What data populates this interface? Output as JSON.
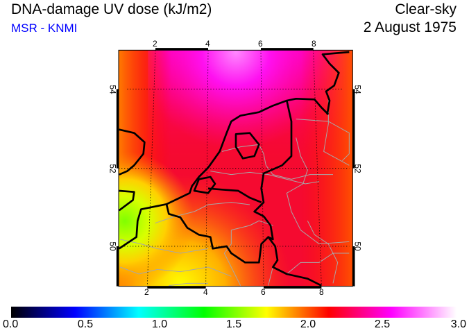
{
  "header": {
    "title": "DNA-damage UV dose (kJ/m2)",
    "source": "MSR - KNMI",
    "condition": "Clear-sky",
    "date": "2 August 1975"
  },
  "map": {
    "lon_ticks_top": [
      "2",
      "4",
      "6",
      "8"
    ],
    "lon_ticks_bottom": [
      "2",
      "4",
      "6",
      "8"
    ],
    "lat_ticks_left": [
      "54",
      "52",
      "50"
    ],
    "lat_ticks_right": [
      "54",
      "52",
      "50"
    ]
  },
  "colorbar": {
    "min": 0.0,
    "max": 3.0,
    "labels": [
      "0.0",
      "0.5",
      "1.0",
      "1.5",
      "2.0",
      "2.5",
      "3.0"
    ],
    "stops": [
      {
        "value": 0.0,
        "color": "#000000"
      },
      {
        "value": 0.43,
        "color": "#0000ff"
      },
      {
        "value": 0.86,
        "color": "#00ffff"
      },
      {
        "value": 1.3,
        "color": "#00ff00"
      },
      {
        "value": 1.72,
        "color": "#ffff00"
      },
      {
        "value": 2.14,
        "color": "#ff0000"
      },
      {
        "value": 2.56,
        "color": "#ff00ff"
      },
      {
        "value": 3.0,
        "color": "#ffffff"
      }
    ]
  }
}
